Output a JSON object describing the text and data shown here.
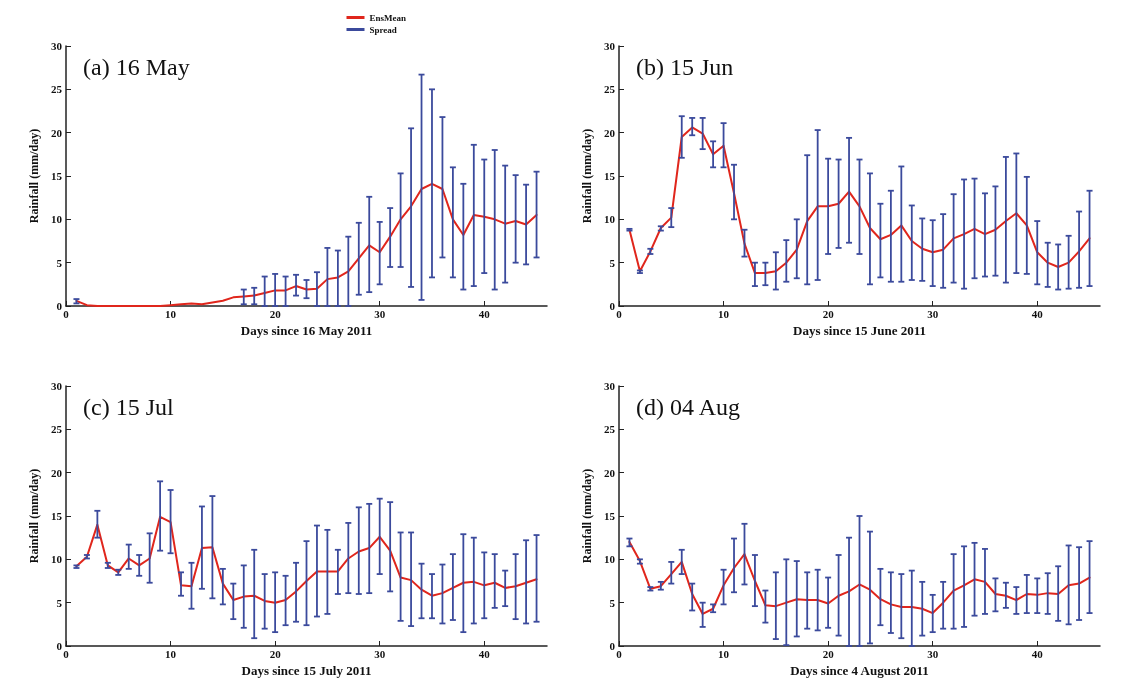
{
  "chart_data": [
    {
      "type": "line",
      "title": "(a) 16 May",
      "xlabel": "Days since 16 May 2011",
      "ylabel": "Rainfall (mm/day)",
      "xlim": [
        0,
        46
      ],
      "xticks": [
        0,
        10,
        20,
        30,
        40
      ],
      "ylim": [
        0,
        30
      ],
      "yticks": [
        0,
        5,
        10,
        15,
        20,
        25,
        30
      ],
      "grid": false,
      "legend": "top right",
      "marker": "none",
      "line_style": "solid",
      "annotations": [
        "Spread"
      ],
      "x": [
        1,
        2,
        3,
        4,
        5,
        6,
        7,
        8,
        9,
        10,
        11,
        12,
        13,
        14,
        15,
        16,
        17,
        18,
        19,
        20,
        21,
        22,
        23,
        24,
        25,
        26,
        27,
        28,
        29,
        30,
        31,
        32,
        33,
        34,
        35,
        36,
        37,
        38,
        39,
        40,
        41,
        42,
        43,
        44,
        45
      ],
      "series": [
        {
          "name": "EnsMean",
          "color": "#e0261c",
          "values": [
            0.6,
            0.1,
            0,
            0,
            0,
            0,
            0,
            0,
            0,
            0.1,
            0.2,
            0.3,
            0.2,
            0.4,
            0.6,
            1.0,
            1.1,
            1.2,
            1.5,
            1.8,
            1.8,
            2.3,
            1.9,
            2.0,
            3.1,
            3.3,
            4.0,
            5.5,
            7.0,
            6.2,
            8.0,
            10.0,
            11.5,
            13.5,
            14.1,
            13.5,
            10.0,
            8.2,
            10.5,
            10.3,
            10.0,
            9.5,
            9.8,
            9.4,
            10.5
          ],
          "errors": [
            [
              0.3,
              0.8
            ],
            null,
            null,
            null,
            null,
            null,
            null,
            null,
            null,
            null,
            null,
            null,
            null,
            null,
            null,
            null,
            [
              0.2,
              1.9
            ],
            [
              0.2,
              2.1
            ],
            [
              0,
              3.4
            ],
            [
              0,
              3.7
            ],
            [
              0,
              3.4
            ],
            [
              1.2,
              3.6
            ],
            [
              0.9,
              3.0
            ],
            [
              0,
              3.9
            ],
            [
              0,
              6.7
            ],
            [
              0,
              6.4
            ],
            [
              0,
              8.0
            ],
            [
              1.3,
              9.6
            ],
            [
              1.6,
              12.6
            ],
            [
              2.5,
              9.7
            ],
            [
              4.5,
              11.3
            ],
            [
              4.5,
              15.3
            ],
            [
              2.2,
              20.5
            ],
            [
              0.7,
              26.7
            ],
            [
              3.3,
              25.0
            ],
            [
              5.6,
              21.8
            ],
            [
              3.3,
              16.0
            ],
            [
              1.9,
              14.1
            ],
            [
              2.3,
              18.6
            ],
            [
              3.8,
              16.9
            ],
            [
              1.9,
              18.0
            ],
            [
              2.7,
              16.2
            ],
            [
              5.0,
              15.1
            ],
            [
              4.8,
              14.0
            ],
            [
              5.6,
              15.5
            ]
          ]
        }
      ]
    },
    {
      "type": "line",
      "title": "(b) 15 Jun",
      "xlabel": "Days since 15 June 2011",
      "ylabel": "Rainfall (mm/day)",
      "xlim": [
        0,
        46
      ],
      "xticks": [
        0,
        10,
        20,
        30,
        40
      ],
      "ylim": [
        0,
        30
      ],
      "yticks": [
        0,
        5,
        10,
        15,
        20,
        25,
        30
      ],
      "grid": false,
      "marker": "none",
      "line_style": "solid",
      "x": [
        1,
        2,
        3,
        4,
        5,
        6,
        7,
        8,
        9,
        10,
        11,
        12,
        13,
        14,
        15,
        16,
        17,
        18,
        19,
        20,
        21,
        22,
        23,
        24,
        25,
        26,
        27,
        28,
        29,
        30,
        31,
        32,
        33,
        34,
        35,
        36,
        37,
        38,
        39,
        40,
        41,
        42,
        43,
        44,
        45
      ],
      "series": [
        {
          "color": "#e0261c",
          "values": [
            8.8,
            4.0,
            6.3,
            9.0,
            10.2,
            19.5,
            20.6,
            19.9,
            17.5,
            18.5,
            13.0,
            7.2,
            3.8,
            3.8,
            4.0,
            5.0,
            6.5,
            9.8,
            11.5,
            11.5,
            11.8,
            13.2,
            11.5,
            9.0,
            7.7,
            8.2,
            9.3,
            7.5,
            6.6,
            6.2,
            6.5,
            7.8,
            8.3,
            8.9,
            8.3,
            8.8,
            9.8,
            10.7,
            9.3,
            6.2,
            5.0,
            4.5,
            5.0,
            6.3,
            7.8
          ],
          "errors": [
            [
              8.7,
              8.9
            ],
            [
              3.8,
              4.1
            ],
            [
              6.0,
              6.6
            ],
            [
              8.7,
              9.2
            ],
            [
              9.1,
              11.3
            ],
            [
              17.1,
              21.9
            ],
            [
              19.7,
              21.7
            ],
            [
              18.1,
              21.7
            ],
            [
              16.0,
              19.0
            ],
            [
              16.0,
              21.1
            ],
            [
              10.0,
              16.3
            ],
            [
              5.7,
              8.8
            ],
            [
              2.3,
              5.0
            ],
            [
              2.4,
              5.0
            ],
            [
              1.9,
              6.2
            ],
            [
              2.8,
              7.6
            ],
            [
              3.2,
              10.0
            ],
            [
              2.5,
              17.4
            ],
            [
              3.0,
              20.3
            ],
            [
              6.0,
              17.0
            ],
            [
              6.7,
              16.9
            ],
            [
              7.3,
              19.4
            ],
            [
              6.0,
              16.9
            ],
            [
              2.5,
              15.3
            ],
            [
              3.3,
              11.8
            ],
            [
              2.8,
              13.3
            ],
            [
              2.8,
              16.1
            ],
            [
              3.0,
              11.6
            ],
            [
              2.9,
              10.1
            ],
            [
              2.3,
              9.9
            ],
            [
              2.1,
              10.6
            ],
            [
              2.7,
              12.9
            ],
            [
              2.0,
              14.6
            ],
            [
              3.2,
              14.7
            ],
            [
              3.4,
              13.0
            ],
            [
              3.5,
              13.8
            ],
            [
              2.7,
              17.2
            ],
            [
              3.8,
              17.6
            ],
            [
              3.7,
              14.9
            ],
            [
              2.5,
              9.8
            ],
            [
              2.2,
              7.3
            ],
            [
              1.9,
              7.1
            ],
            [
              2.0,
              8.1
            ],
            [
              2.1,
              10.9
            ],
            [
              2.3,
              13.3
            ]
          ]
        }
      ]
    },
    {
      "type": "line",
      "title": "(c) 15 Jul",
      "xlabel": "Days since 15 July 2011",
      "ylabel": "Rainfall (mm/day)",
      "xlim": [
        0,
        46
      ],
      "xticks": [
        0,
        10,
        20,
        30,
        40
      ],
      "ylim": [
        0,
        30
      ],
      "yticks": [
        0,
        5,
        10,
        15,
        20,
        25,
        30
      ],
      "grid": false,
      "marker": "none",
      "line_style": "solid",
      "x": [
        1,
        2,
        3,
        4,
        5,
        6,
        7,
        8,
        9,
        10,
        11,
        12,
        13,
        14,
        15,
        16,
        17,
        18,
        19,
        20,
        21,
        22,
        23,
        24,
        25,
        26,
        27,
        28,
        29,
        30,
        31,
        32,
        33,
        34,
        35,
        36,
        37,
        38,
        39,
        40,
        41,
        42,
        43,
        44,
        45
      ],
      "series": [
        {
          "color": "#e0261c",
          "values": [
            9.2,
            10.3,
            14.0,
            9.3,
            8.5,
            10.1,
            9.3,
            10.1,
            14.9,
            14.3,
            7.0,
            6.9,
            11.3,
            11.4,
            7.2,
            5.3,
            5.7,
            5.8,
            5.2,
            5.0,
            5.3,
            6.3,
            7.5,
            8.6,
            8.6,
            8.6,
            10.1,
            10.9,
            11.3,
            12.6,
            11.0,
            7.9,
            7.6,
            6.5,
            5.8,
            6.1,
            6.7,
            7.3,
            7.4,
            7.0,
            7.3,
            6.7,
            6.9,
            7.3,
            7.7
          ],
          "errors": [
            [
              9.0,
              9.3
            ],
            [
              10.1,
              10.5
            ],
            [
              12.5,
              15.6
            ],
            [
              9.0,
              9.6
            ],
            [
              8.2,
              8.8
            ],
            [
              8.9,
              11.7
            ],
            [
              8.1,
              10.5
            ],
            [
              7.3,
              13.0
            ],
            [
              11.0,
              19.0
            ],
            [
              10.7,
              18.0
            ],
            [
              5.8,
              8.5
            ],
            [
              4.3,
              9.6
            ],
            [
              6.6,
              16.1
            ],
            [
              5.5,
              17.3
            ],
            [
              4.8,
              8.9
            ],
            [
              3.1,
              7.2
            ],
            [
              2.1,
              9.3
            ],
            [
              0.9,
              11.1
            ],
            [
              2.0,
              8.3
            ],
            [
              1.6,
              8.5
            ],
            [
              2.4,
              8.1
            ],
            [
              2.8,
              9.6
            ],
            [
              2.4,
              12.1
            ],
            [
              3.4,
              13.9
            ],
            [
              3.7,
              13.4
            ],
            [
              6.0,
              11.1
            ],
            [
              6.1,
              14.2
            ],
            [
              6.0,
              16.0
            ],
            [
              6.1,
              16.4
            ],
            [
              8.3,
              17.0
            ],
            [
              6.3,
              16.6
            ],
            [
              2.9,
              13.1
            ],
            [
              2.3,
              13.1
            ],
            [
              3.2,
              9.5
            ],
            [
              3.2,
              8.3
            ],
            [
              2.6,
              9.4
            ],
            [
              3.0,
              10.6
            ],
            [
              1.6,
              12.9
            ],
            [
              2.6,
              12.5
            ],
            [
              3.2,
              10.8
            ],
            [
              4.4,
              10.6
            ],
            [
              4.6,
              8.7
            ],
            [
              3.1,
              10.6
            ],
            [
              2.6,
              12.2
            ],
            [
              2.8,
              12.8
            ]
          ]
        }
      ]
    },
    {
      "type": "line",
      "title": "(d) 04 Aug",
      "xlabel": "Days since 4 August 2011",
      "ylabel": "Rainfall (mm/day)",
      "xlim": [
        0,
        46
      ],
      "xticks": [
        0,
        10,
        20,
        30,
        40
      ],
      "ylim": [
        0,
        30
      ],
      "yticks": [
        0,
        5,
        10,
        15,
        20,
        25,
        30
      ],
      "grid": false,
      "marker": "none",
      "line_style": "solid",
      "x": [
        1,
        2,
        3,
        4,
        5,
        6,
        7,
        8,
        9,
        10,
        11,
        12,
        13,
        14,
        15,
        16,
        17,
        18,
        19,
        20,
        21,
        22,
        23,
        24,
        25,
        26,
        27,
        28,
        29,
        30,
        31,
        32,
        33,
        34,
        35,
        36,
        37,
        38,
        39,
        40,
        41,
        42,
        43,
        44,
        45
      ],
      "series": [
        {
          "color": "#e0261c",
          "values": [
            12.0,
            9.8,
            6.6,
            6.9,
            8.3,
            9.7,
            6.0,
            3.7,
            4.3,
            7.0,
            9.0,
            10.6,
            7.5,
            4.7,
            4.6,
            5.0,
            5.4,
            5.3,
            5.3,
            4.9,
            5.8,
            6.3,
            7.1,
            6.5,
            5.4,
            4.8,
            4.5,
            4.5,
            4.3,
            3.8,
            5.0,
            6.4,
            7.0,
            7.7,
            7.4,
            6.0,
            5.8,
            5.3,
            6.0,
            5.9,
            6.1,
            6.0,
            7.0,
            7.2,
            7.9
          ],
          "errors": [
            [
              11.5,
              12.4
            ],
            [
              9.5,
              10.0
            ],
            [
              6.4,
              6.8
            ],
            [
              6.5,
              7.4
            ],
            [
              7.2,
              9.7
            ],
            [
              8.3,
              11.1
            ],
            [
              4.1,
              7.2
            ],
            [
              2.2,
              5.0
            ],
            [
              3.9,
              4.8
            ],
            [
              4.8,
              8.8
            ],
            [
              6.2,
              12.4
            ],
            [
              7.1,
              14.1
            ],
            [
              4.6,
              10.5
            ],
            [
              2.7,
              6.4
            ],
            [
              0.8,
              8.5
            ],
            [
              0.1,
              10.0
            ],
            [
              1.1,
              9.8
            ],
            [
              2.0,
              8.5
            ],
            [
              1.8,
              8.8
            ],
            [
              2.1,
              7.9
            ],
            [
              1.2,
              10.5
            ],
            [
              0,
              12.5
            ],
            [
              0,
              15.0
            ],
            [
              0.3,
              13.2
            ],
            [
              2.4,
              8.9
            ],
            [
              1.5,
              8.5
            ],
            [
              0.9,
              8.3
            ],
            [
              0,
              8.7
            ],
            [
              1.2,
              7.4
            ],
            [
              1.6,
              5.9
            ],
            [
              2.0,
              7.4
            ],
            [
              2.0,
              10.6
            ],
            [
              2.2,
              11.5
            ],
            [
              3.5,
              11.9
            ],
            [
              3.7,
              11.2
            ],
            [
              4.0,
              7.8
            ],
            [
              4.4,
              7.3
            ],
            [
              3.7,
              6.8
            ],
            [
              3.8,
              8.2
            ],
            [
              3.8,
              7.8
            ],
            [
              3.7,
              8.4
            ],
            [
              2.9,
              9.2
            ],
            [
              2.5,
              11.6
            ],
            [
              3.0,
              11.4
            ],
            [
              3.8,
              12.1
            ]
          ]
        }
      ]
    }
  ]
}
